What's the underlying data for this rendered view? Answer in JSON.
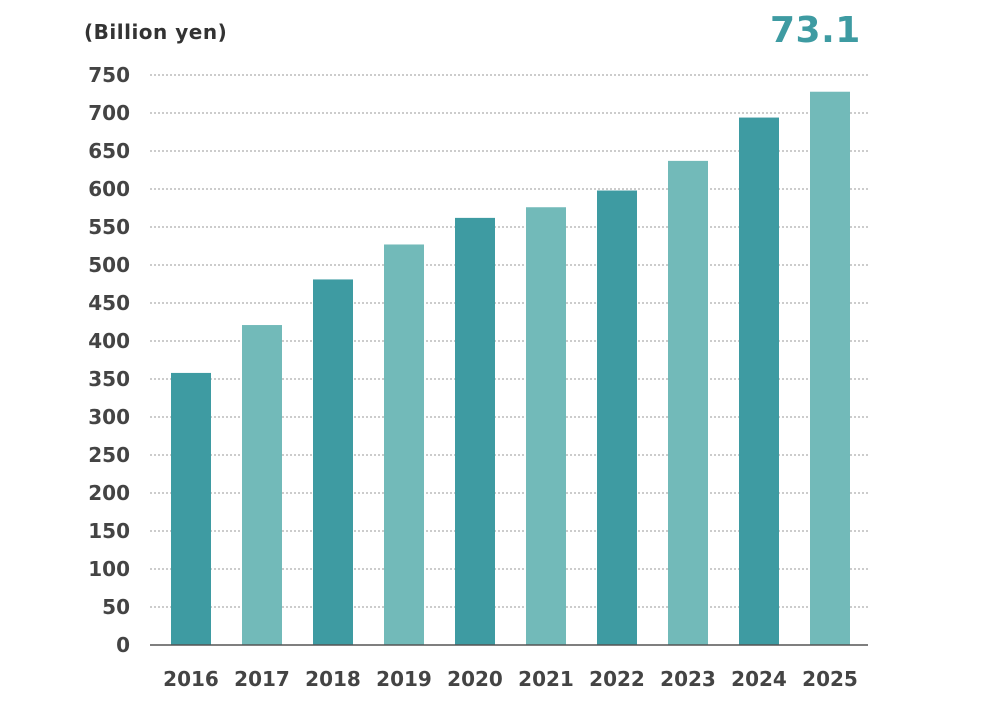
{
  "chart_data": {
    "type": "bar",
    "unit_label": "(Billion yen)",
    "highlight_value": "73.1",
    "categories": [
      "2016",
      "2017",
      "2018",
      "2019",
      "2020",
      "2021",
      "2022",
      "2023",
      "2024",
      "2025"
    ],
    "values": [
      358,
      421,
      481,
      527,
      562,
      576,
      598,
      637,
      694,
      728
    ],
    "ylim": [
      0,
      750
    ],
    "yticks": [
      0,
      50,
      100,
      150,
      200,
      250,
      300,
      350,
      400,
      450,
      500,
      550,
      600,
      650,
      700,
      750
    ],
    "grid": true,
    "colors": {
      "bar_dark": "#3e9ba2",
      "bar_light": "#72bab9",
      "grid": "#9a9a9a",
      "axis": "#555555",
      "tick_text": "#444444",
      "highlight": "#3e9ba2"
    }
  }
}
